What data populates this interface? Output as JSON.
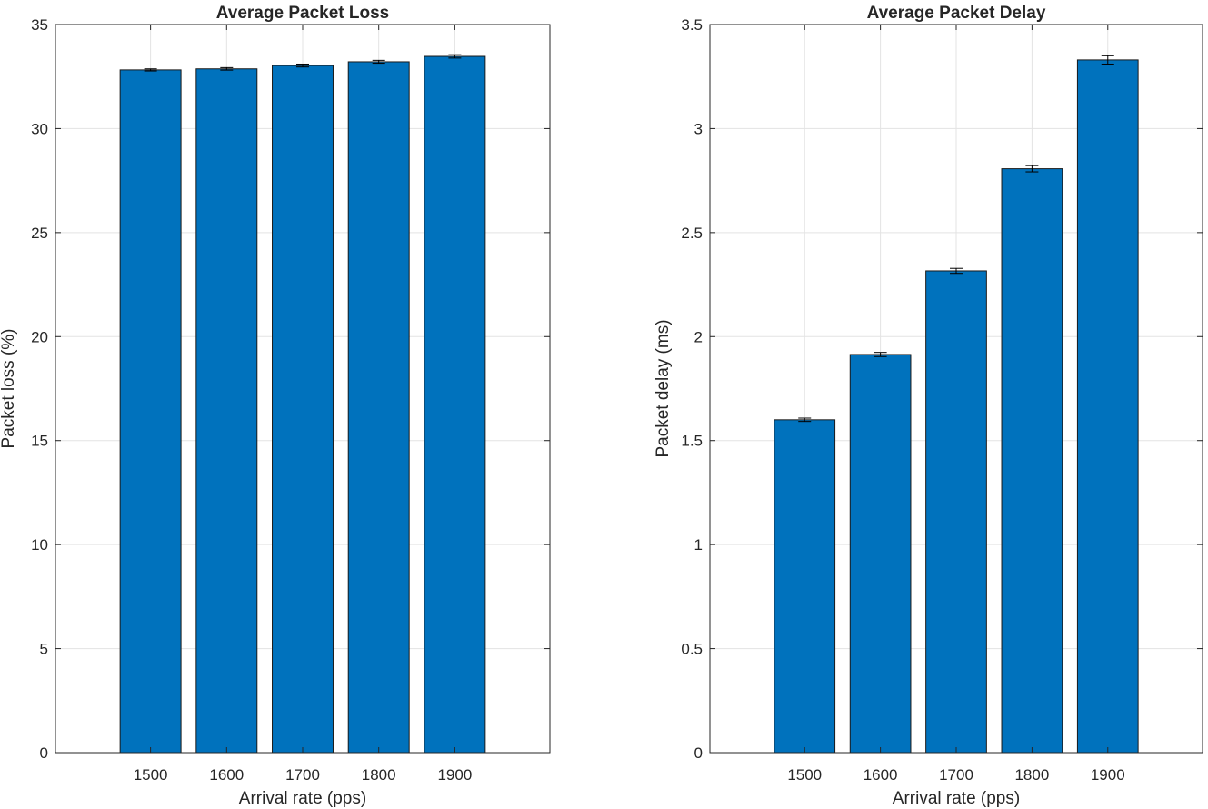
{
  "chart_data": [
    {
      "type": "bar",
      "title": "Average Packet Loss",
      "xlabel": "Arrival rate (pps)",
      "ylabel": "Packet loss (%)",
      "categories": [
        "1500",
        "1600",
        "1700",
        "1800",
        "1900"
      ],
      "values": [
        32.82,
        32.87,
        33.03,
        33.21,
        33.47
      ],
      "error": [
        0.05,
        0.06,
        0.07,
        0.07,
        0.08
      ],
      "ylim": [
        0,
        35
      ],
      "yticks": [
        "0",
        "5",
        "10",
        "15",
        "20",
        "25",
        "30",
        "35"
      ],
      "grid": true,
      "bar_color": "#0072BD"
    },
    {
      "type": "bar",
      "title": "Average Packet Delay",
      "xlabel": "Arrival rate (pps)",
      "ylabel": "Packet delay (ms)",
      "categories": [
        "1500",
        "1600",
        "1700",
        "1800",
        "1900"
      ],
      "values": [
        1.6,
        1.914,
        2.316,
        2.807,
        3.33
      ],
      "error": [
        0.008,
        0.01,
        0.012,
        0.015,
        0.02
      ],
      "ylim": [
        0,
        3.5
      ],
      "yticks": [
        "0",
        "0.5",
        "1",
        "1.5",
        "2",
        "2.5",
        "3",
        "3.5"
      ],
      "grid": true,
      "bar_color": "#0072BD"
    }
  ]
}
